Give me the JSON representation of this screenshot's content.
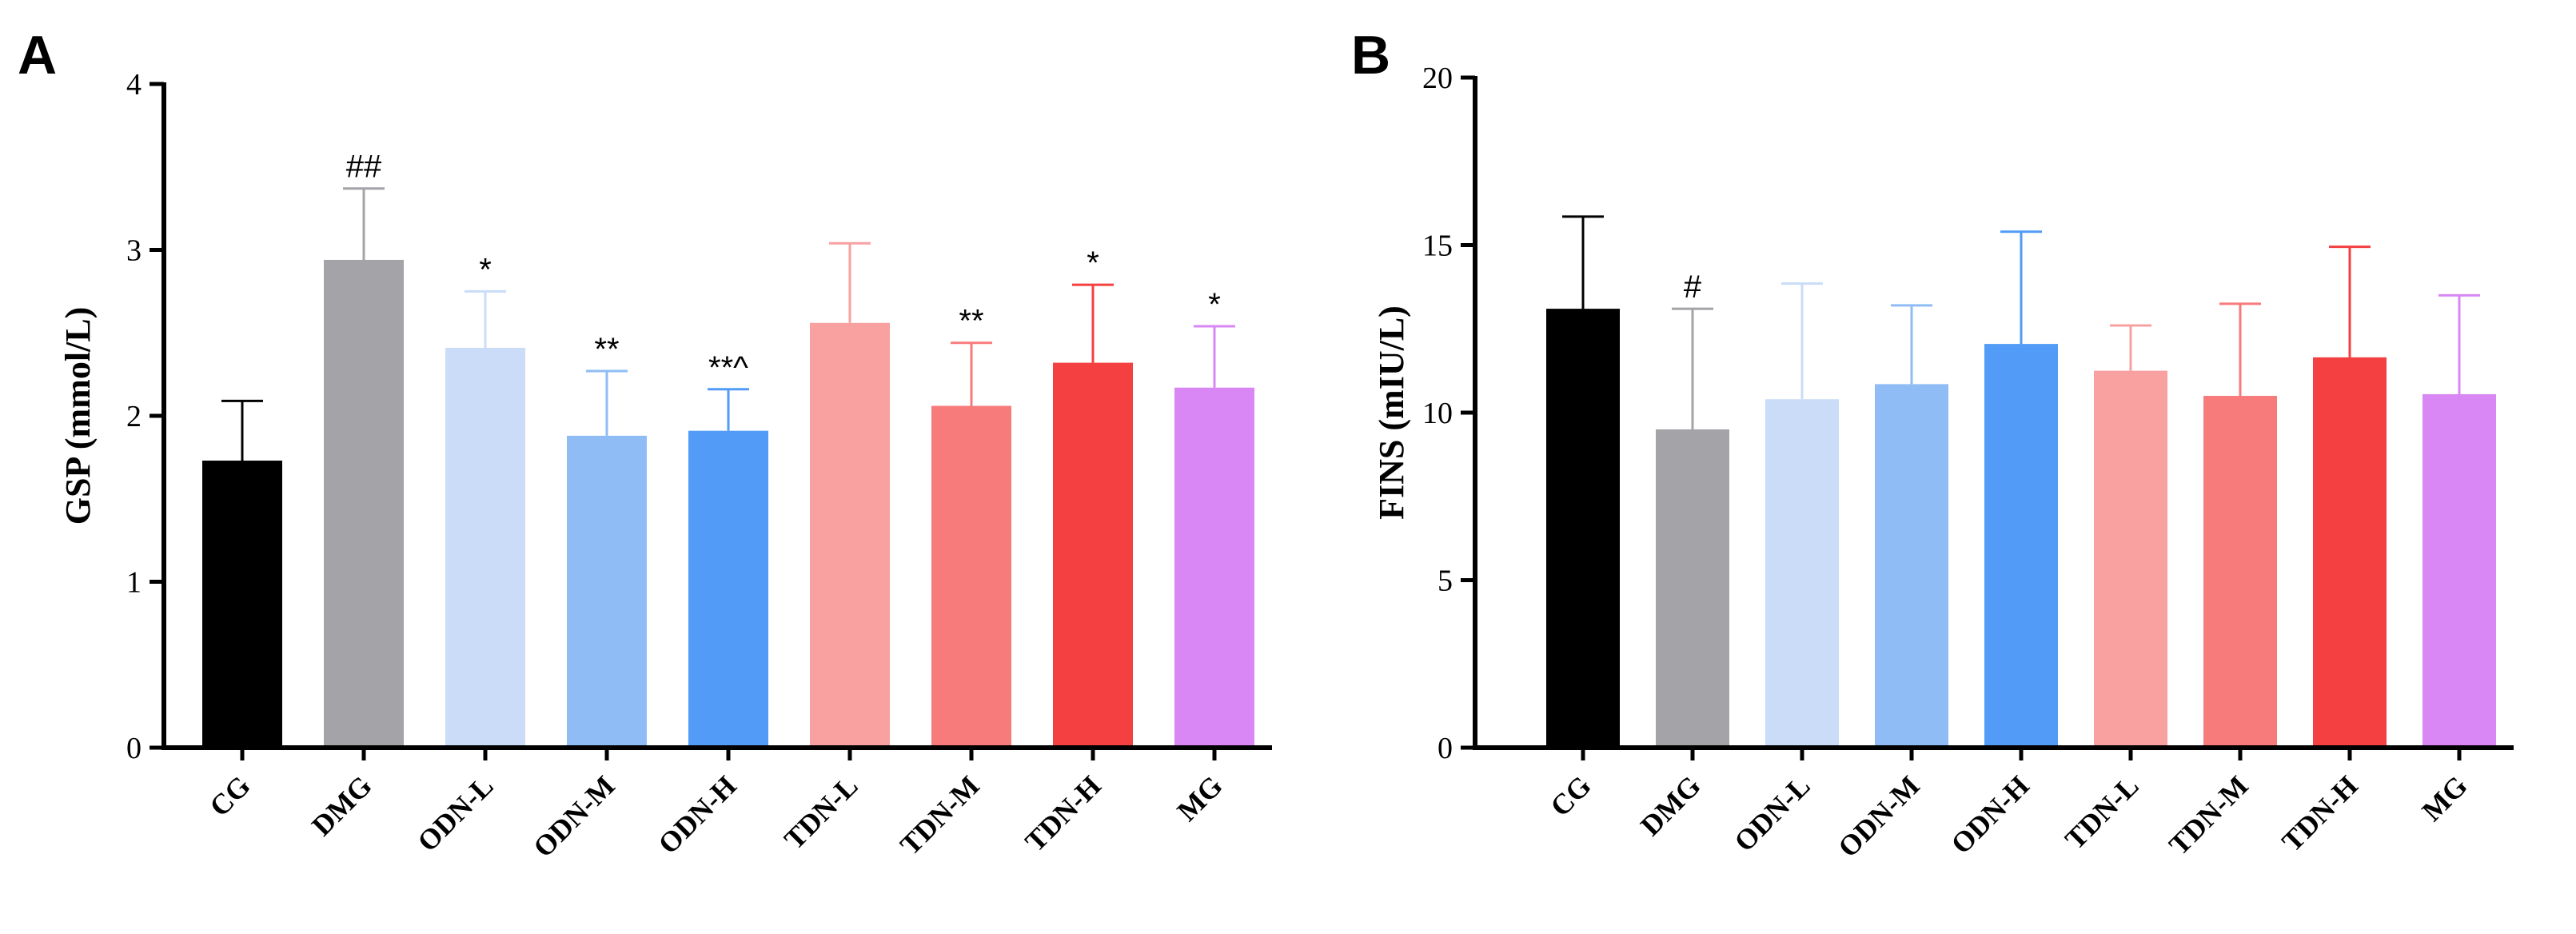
{
  "chart_data": [
    {
      "type": "bar",
      "panel_label": "A",
      "ylabel": "GSP (mmol/L)",
      "xlabel": "",
      "ylim": [
        0,
        4
      ],
      "yticks": [
        0,
        1,
        2,
        3,
        4
      ],
      "categories": [
        "CG",
        "DMG",
        "ODN-L",
        "ODN-M",
        "ODN-H",
        "TDN-L",
        "TDN-M",
        "TDN-H",
        "MG"
      ],
      "colors": [
        "#000000",
        "#a4a3a8",
        "#cadcf7",
        "#8fbcf5",
        "#529bf7",
        "#f9a0a0",
        "#f87b7b",
        "#f44040",
        "#d987f5"
      ],
      "values": [
        1.73,
        2.94,
        2.41,
        1.88,
        1.91,
        2.56,
        2.06,
        2.32,
        2.17
      ],
      "errors": [
        0.36,
        0.43,
        0.34,
        0.39,
        0.25,
        0.48,
        0.38,
        0.47,
        0.37
      ],
      "annotations": [
        "",
        "##",
        "*",
        "**",
        "**^",
        "",
        "**",
        "*",
        "*"
      ]
    },
    {
      "type": "bar",
      "panel_label": "B",
      "ylabel": "FINS (mIU/L)",
      "xlabel": "",
      "ylim": [
        0,
        20
      ],
      "yticks": [
        0,
        5,
        10,
        15,
        20
      ],
      "categories": [
        "CG",
        "DMG",
        "ODN-L",
        "ODN-M",
        "ODN-H",
        "TDN-L",
        "TDN-M",
        "TDN-H",
        "MG"
      ],
      "colors": [
        "#000000",
        "#a4a3a8",
        "#cadcf7",
        "#8fbcf5",
        "#529bf7",
        "#f9a0a0",
        "#f87b7b",
        "#f44040",
        "#d987f5"
      ],
      "values": [
        13.1,
        9.5,
        10.4,
        10.85,
        12.05,
        11.25,
        10.5,
        11.65,
        10.55
      ],
      "errors": [
        2.75,
        3.6,
        3.45,
        2.35,
        3.35,
        1.35,
        2.75,
        3.3,
        2.95
      ],
      "annotations": [
        "",
        "#",
        "",
        "",
        "",
        "",
        "",
        "",
        ""
      ]
    }
  ]
}
